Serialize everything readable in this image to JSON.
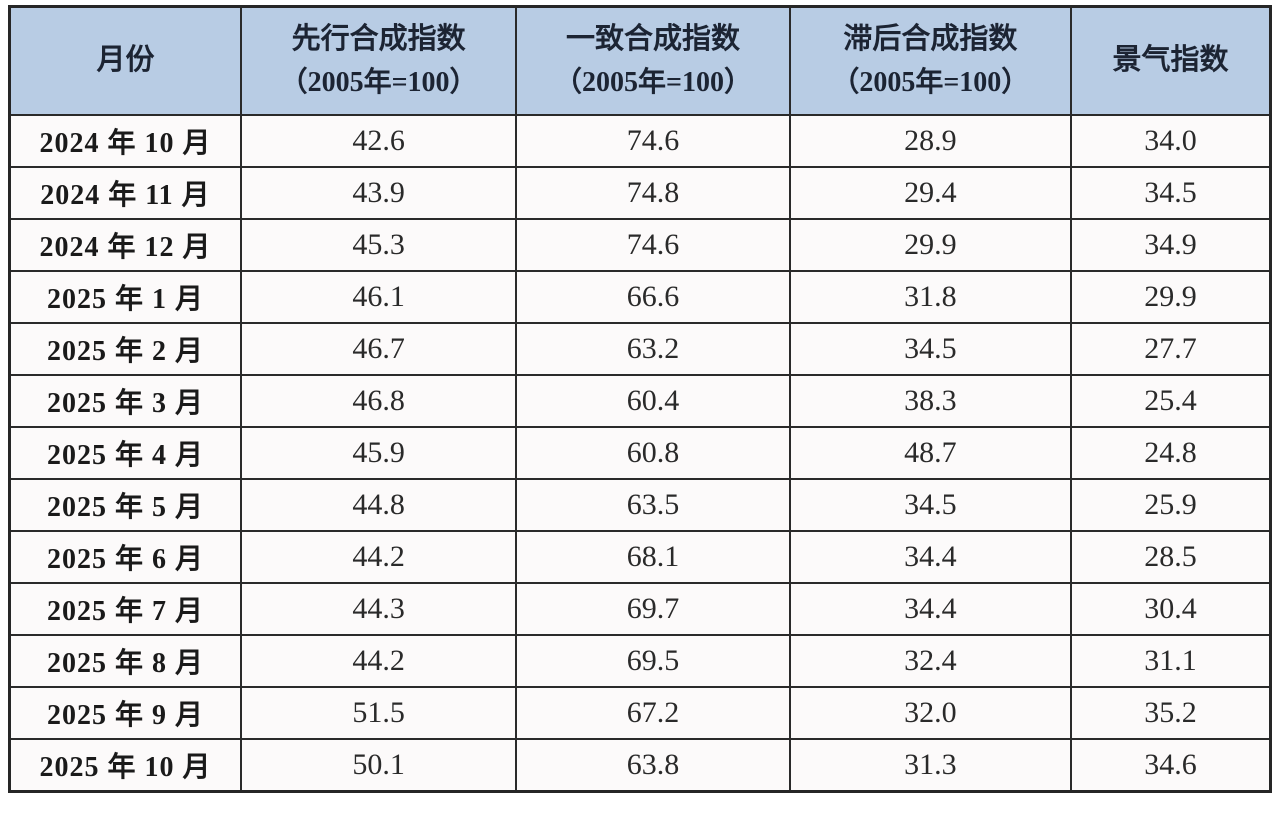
{
  "colors": {
    "header_bg": "#b8cce4",
    "body_bg": "#fcfafa",
    "border": "#2a2a2a",
    "header_text": "#1c2433",
    "body_text": "#2a2a2a"
  },
  "table": {
    "header": [
      {
        "title": "月份",
        "subtitle": ""
      },
      {
        "title": "先行合成指数",
        "subtitle": "（2005年=100）"
      },
      {
        "title": "一致合成指数",
        "subtitle": "（2005年=100）"
      },
      {
        "title": "滞后合成指数",
        "subtitle": "（2005年=100）"
      },
      {
        "title": "景气指数",
        "subtitle": ""
      }
    ],
    "rows": [
      {
        "month": "2024 年 10 月",
        "leading": "42.6",
        "coincident": "74.6",
        "lagging": "28.9",
        "prosperity": "34.0"
      },
      {
        "month": "2024 年 11 月",
        "leading": "43.9",
        "coincident": "74.8",
        "lagging": "29.4",
        "prosperity": "34.5"
      },
      {
        "month": "2024 年 12 月",
        "leading": "45.3",
        "coincident": "74.6",
        "lagging": "29.9",
        "prosperity": "34.9"
      },
      {
        "month": "2025 年 1 月",
        "leading": "46.1",
        "coincident": "66.6",
        "lagging": "31.8",
        "prosperity": "29.9"
      },
      {
        "month": "2025 年 2 月",
        "leading": "46.7",
        "coincident": "63.2",
        "lagging": "34.5",
        "prosperity": "27.7"
      },
      {
        "month": "2025 年 3 月",
        "leading": "46.8",
        "coincident": "60.4",
        "lagging": "38.3",
        "prosperity": "25.4"
      },
      {
        "month": "2025 年 4 月",
        "leading": "45.9",
        "coincident": "60.8",
        "lagging": "48.7",
        "prosperity": "24.8"
      },
      {
        "month": "2025 年 5 月",
        "leading": "44.8",
        "coincident": "63.5",
        "lagging": "34.5",
        "prosperity": "25.9"
      },
      {
        "month": "2025 年 6 月",
        "leading": "44.2",
        "coincident": "68.1",
        "lagging": "34.4",
        "prosperity": "28.5"
      },
      {
        "month": "2025 年 7 月",
        "leading": "44.3",
        "coincident": "69.7",
        "lagging": "34.4",
        "prosperity": "30.4"
      },
      {
        "month": "2025 年 8 月",
        "leading": "44.2",
        "coincident": "69.5",
        "lagging": "32.4",
        "prosperity": "31.1"
      },
      {
        "month": "2025 年 9 月",
        "leading": "51.5",
        "coincident": "67.2",
        "lagging": "32.0",
        "prosperity": "35.2"
      },
      {
        "month": "2025 年 10 月",
        "leading": "50.1",
        "coincident": "63.8",
        "lagging": "31.3",
        "prosperity": "34.6"
      }
    ]
  },
  "chart_data": {
    "type": "table",
    "title": "",
    "categories": [
      "2024年10月",
      "2024年11月",
      "2024年12月",
      "2025年1月",
      "2025年2月",
      "2025年3月",
      "2025年4月",
      "2025年5月",
      "2025年6月",
      "2025年7月",
      "2025年8月",
      "2025年9月",
      "2025年10月"
    ],
    "series": [
      {
        "name": "先行合成指数（2005年=100）",
        "values": [
          42.6,
          43.9,
          45.3,
          46.1,
          46.7,
          46.8,
          45.9,
          44.8,
          44.2,
          44.3,
          44.2,
          51.5,
          50.1
        ]
      },
      {
        "name": "一致合成指数（2005年=100）",
        "values": [
          74.6,
          74.8,
          74.6,
          66.6,
          63.2,
          60.4,
          60.8,
          63.5,
          68.1,
          69.7,
          69.5,
          67.2,
          63.8
        ]
      },
      {
        "name": "滞后合成指数（2005年=100）",
        "values": [
          28.9,
          29.4,
          29.9,
          31.8,
          34.5,
          38.3,
          48.7,
          34.5,
          34.4,
          34.4,
          32.4,
          32.0,
          31.3
        ]
      },
      {
        "name": "景气指数",
        "values": [
          34.0,
          34.5,
          34.9,
          29.9,
          27.7,
          25.4,
          24.8,
          25.9,
          28.5,
          30.4,
          31.1,
          35.2,
          34.6
        ]
      }
    ]
  }
}
